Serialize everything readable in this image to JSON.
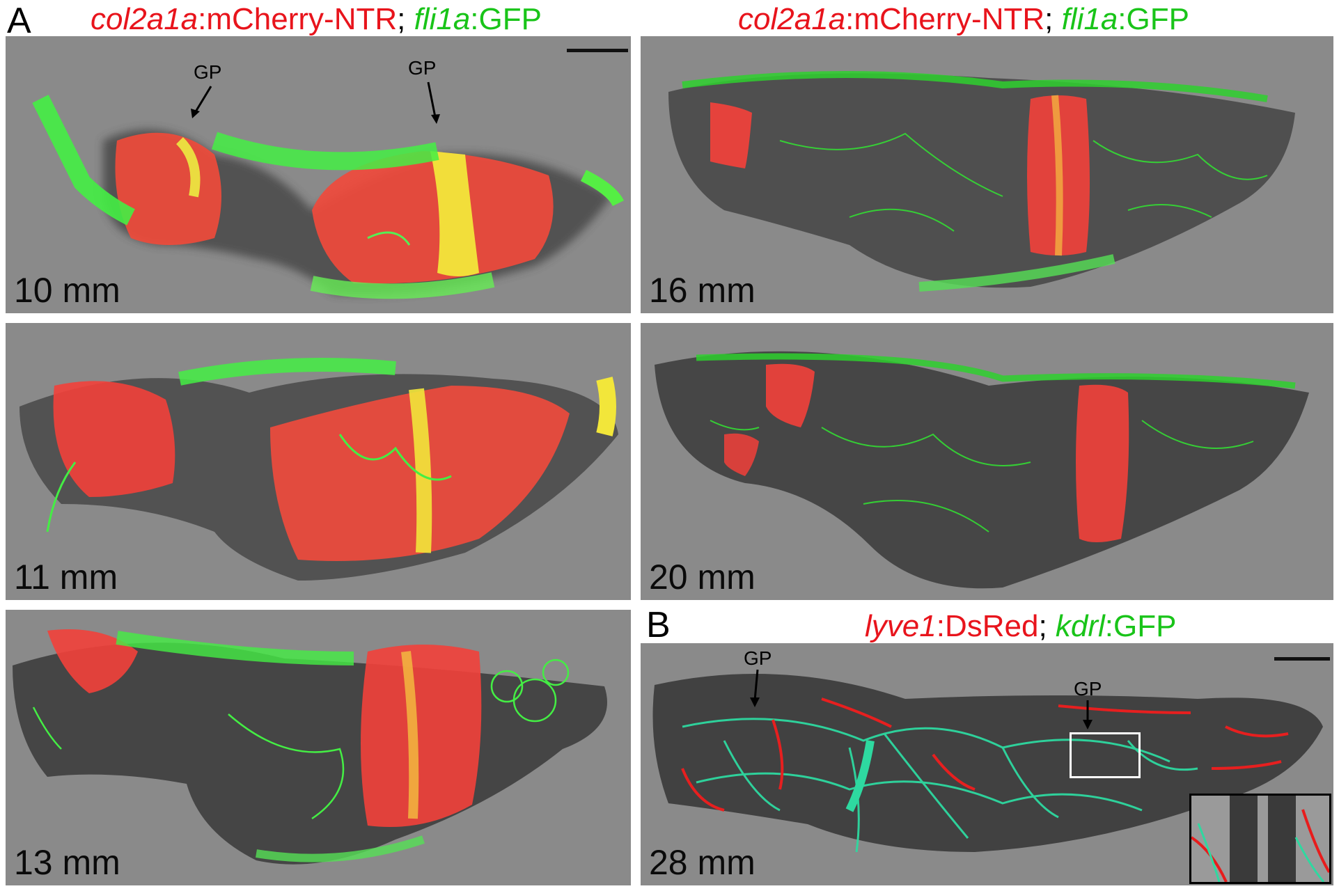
{
  "panel_a": {
    "letter": "A",
    "title_left": {
      "gene1": "col2a1a",
      "construct1": ":mCherry-NTR",
      "sep": "; ",
      "gene2": "fli1a",
      "construct2": ":GFP"
    },
    "title_right": {
      "gene1": "col2a1a",
      "construct1": ":mCherry-NTR",
      "sep": "; ",
      "gene2": "fli1a",
      "construct2": ":GFP"
    },
    "tiles": [
      {
        "size_label": "10 mm",
        "gp_labels": [
          "GP",
          "GP"
        ]
      },
      {
        "size_label": "16 mm"
      },
      {
        "size_label": "11 mm"
      },
      {
        "size_label": "20 mm"
      },
      {
        "size_label": "13 mm"
      }
    ]
  },
  "panel_b": {
    "letter": "B",
    "title": {
      "gene1": "lyve1",
      "construct1": ":DsRed",
      "sep": "; ",
      "gene2": "kdrl",
      "construct2": ":GFP"
    },
    "tile": {
      "size_label": "28 mm",
      "gp_labels": [
        "GP",
        "GP"
      ]
    }
  },
  "colors": {
    "red_label": "#e8141c",
    "green_label": "#19c419",
    "background_gray": "#8a8a8a",
    "mcherry": "#ff3a3a",
    "gfp": "#33ff33",
    "merge": "#ffee33"
  }
}
